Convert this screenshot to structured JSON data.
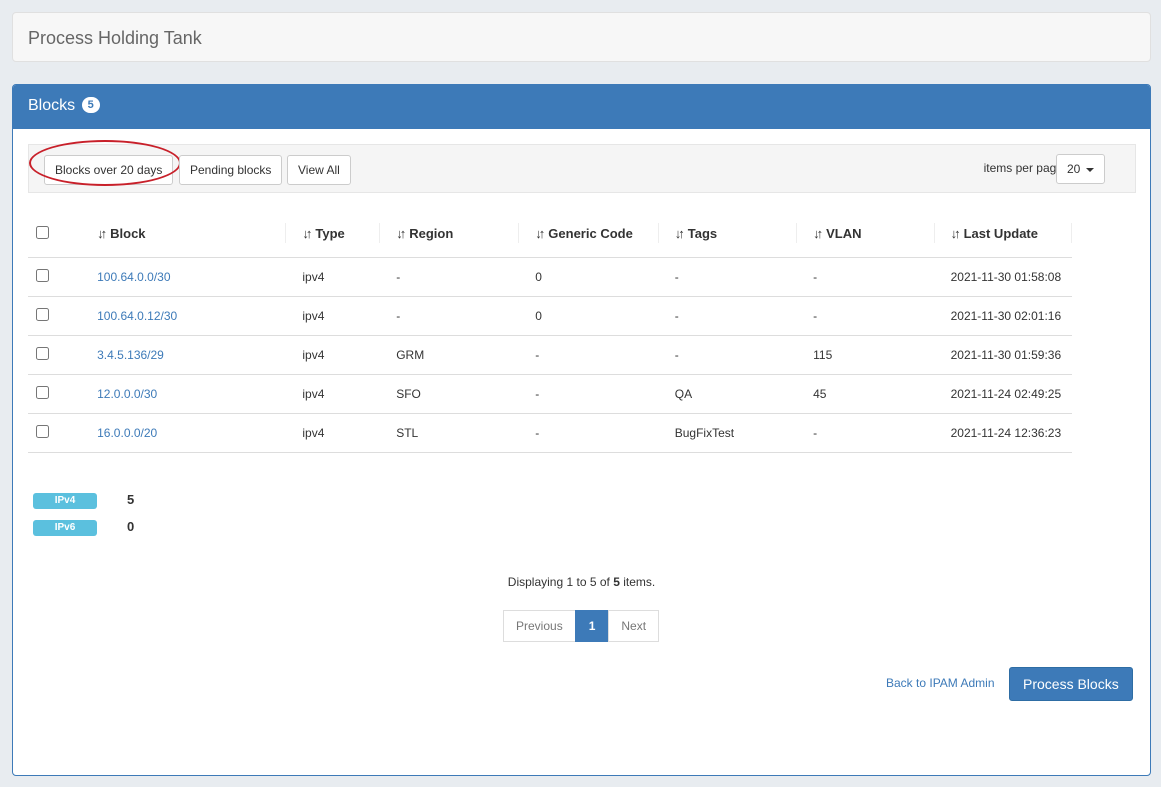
{
  "page_title": "Process Holding Tank",
  "panel": {
    "title": "Blocks",
    "count": "5"
  },
  "filters": [
    {
      "label": "Blocks over 20 days",
      "highlighted": true
    },
    {
      "label": "Pending blocks"
    },
    {
      "label": "View All"
    }
  ],
  "items_per_page": {
    "label": "items per page",
    "value": "20"
  },
  "columns": [
    "Block",
    "Type",
    "Region",
    "Generic Code",
    "Tags",
    "VLAN",
    "Last Update"
  ],
  "rows": [
    [
      "100.64.0.0/30",
      "ipv4",
      "-",
      "0",
      "-",
      "-",
      "2021-11-30 01:58:08"
    ],
    [
      "100.64.0.12/30",
      "ipv4",
      "-",
      "0",
      "-",
      "-",
      "2021-11-30 02:01:16"
    ],
    [
      "3.4.5.136/29",
      "ipv4",
      "GRM",
      "-",
      "-",
      "115",
      "2021-11-30 01:59:36"
    ],
    [
      "12.0.0.0/30",
      "ipv4",
      "SFO",
      "-",
      "QA",
      "45",
      "2021-11-24 02:49:25"
    ],
    [
      "16.0.0.0/20",
      "ipv4",
      "STL",
      "-",
      "BugFixTest",
      "-",
      "2021-11-24 12:36:23"
    ]
  ],
  "summary": [
    {
      "label": "IPv4",
      "count": "5"
    },
    {
      "label": "IPv6",
      "count": "0"
    }
  ],
  "display": {
    "prefix": "Displaying 1 to 5 of ",
    "total": "5",
    "suffix": " items."
  },
  "pagination": {
    "previous": "Previous",
    "current": "1",
    "next": "Next"
  },
  "back_link": "Back to IPAM Admin",
  "process_button": "Process Blocks",
  "colors": {
    "accent": "#3d7ab8",
    "label": "#5bc0de",
    "highlight": "#c8202a"
  }
}
